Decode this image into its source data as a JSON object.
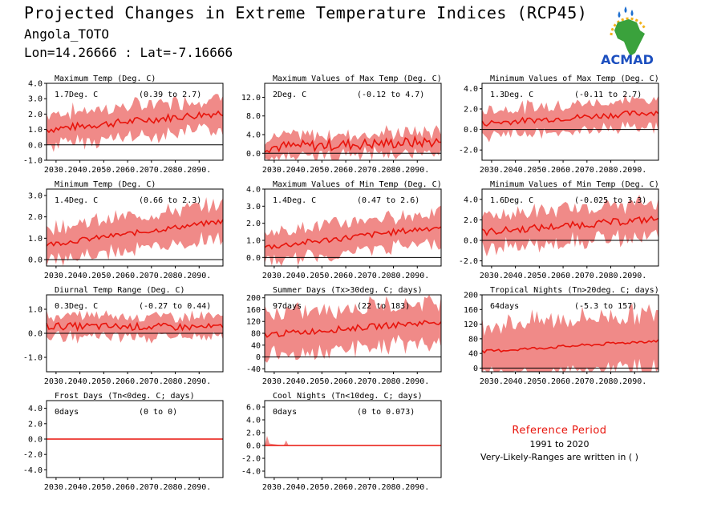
{
  "header": {
    "title": "Projected Changes in Extreme Temperature Indices (RCP45)",
    "location": "Angola_TOTO",
    "coords": "Lon=14.26666 : Lat=-7.16666"
  },
  "logo": {
    "text": "ACMAD",
    "colors": {
      "africa": "#3aa23c",
      "sun": "#f2b21a",
      "drops": "#1e6fd0",
      "text": "#1c4fbf"
    }
  },
  "reference": {
    "title": "Reference Period",
    "years": "1991 to 2020",
    "note": "Very-Likely-Ranges are written in ( )"
  },
  "colors": {
    "band": "#f08a88",
    "line": "#e8140c",
    "zero": "#000000"
  },
  "chart_data": [
    {
      "type": "area",
      "title": "Maximum Temp (Deg. C)",
      "mean_label": "1.7Deg. C",
      "range_label": "(0.39 to 2.7)",
      "x_ticks": [
        "2030.",
        "2040.",
        "2050.",
        "2060.",
        "2070.",
        "2080.",
        "2090."
      ],
      "xlim": [
        2026,
        2100
      ],
      "ylim": [
        -1,
        4
      ],
      "y_ticks": [
        "-1.0",
        "0.0",
        "1.0",
        "2.0",
        "3.0",
        "4.0"
      ],
      "y_tick_values": [
        -1,
        0,
        1,
        2,
        3,
        4
      ],
      "series": [
        {
          "values": {
            "start": [
              2026,
              1.0
            ],
            "end": [
              2100,
              2.1
            ],
            "spread": 1.0,
            "noise": 0.25
          }
        }
      ],
      "zero_line": 0
    },
    {
      "type": "area",
      "title": "Maximum Values of Max Temp (Deg. C)",
      "mean_label": "2Deg. C",
      "range_label": "(-0.12 to 4.7)",
      "x_ticks": [
        "2030.",
        "2040.",
        "2050.",
        "2060.",
        "2070.",
        "2080.",
        "2090."
      ],
      "xlim": [
        2026,
        2100
      ],
      "ylim": [
        -1.5,
        15
      ],
      "y_ticks": [
        "0.0",
        "4.0",
        "8.0",
        "12.0"
      ],
      "y_tick_values": [
        0,
        4,
        8,
        12
      ],
      "series": [
        {
          "values": {
            "start": [
              2026,
              1.3
            ],
            "end": [
              2100,
              2.5
            ],
            "spread": 2.2,
            "noise": 1.2
          }
        }
      ],
      "zero_line": 0
    },
    {
      "type": "area",
      "title": "Minimum Values of Max Temp (Deg. C)",
      "mean_label": "1.3Deg. C",
      "range_label": "(-0.11 to 2.7)",
      "x_ticks": [
        "2030.",
        "2040.",
        "2050.",
        "2060.",
        "2070.",
        "2080.",
        "2090."
      ],
      "xlim": [
        2026,
        2100
      ],
      "ylim": [
        -3,
        4.5
      ],
      "y_ticks": [
        "-2.0",
        "0.0",
        "2.0",
        "4.0"
      ],
      "y_tick_values": [
        -2,
        0,
        2,
        4
      ],
      "series": [
        {
          "values": {
            "start": [
              2026,
              0.6
            ],
            "end": [
              2100,
              1.7
            ],
            "spread": 1.3,
            "noise": 0.3
          }
        }
      ],
      "zero_line": 0
    },
    {
      "type": "area",
      "title": "Minimum Temp (Deg. C)",
      "mean_label": "1.4Deg. C",
      "range_label": "(0.66 to 2.3)",
      "x_ticks": [
        "2030.",
        "2040.",
        "2050.",
        "2060.",
        "2070.",
        "2080.",
        "2090."
      ],
      "xlim": [
        2026,
        2100
      ],
      "ylim": [
        -0.3,
        3.3
      ],
      "y_ticks": [
        "0.0",
        "1.0",
        "2.0",
        "3.0"
      ],
      "y_tick_values": [
        0,
        1,
        2,
        3
      ],
      "series": [
        {
          "values": {
            "start": [
              2026,
              0.7
            ],
            "end": [
              2100,
              1.8
            ],
            "spread": 0.8,
            "noise": 0.12
          }
        }
      ],
      "zero_line": 0
    },
    {
      "type": "area",
      "title": "Maximum Values of Min Temp (Deg. C)",
      "mean_label": "1.4Deg. C",
      "range_label": "(0.47 to 2.6)",
      "x_ticks": [
        "2030.",
        "2040.",
        "2050.",
        "2060.",
        "2070.",
        "2080.",
        "2090."
      ],
      "xlim": [
        2026,
        2100
      ],
      "ylim": [
        -0.5,
        4
      ],
      "y_ticks": [
        "0.0",
        "1.0",
        "2.0",
        "3.0",
        "4.0"
      ],
      "y_tick_values": [
        0,
        1,
        2,
        3,
        4
      ],
      "series": [
        {
          "values": {
            "start": [
              2026,
              0.6
            ],
            "end": [
              2100,
              1.8
            ],
            "spread": 0.9,
            "noise": 0.18
          }
        }
      ],
      "zero_line": 0
    },
    {
      "type": "area",
      "title": "Minimum Values of Min Temp (Deg. C)",
      "mean_label": "1.6Deg. C",
      "range_label": "(-0.025 to 3.3)",
      "x_ticks": [
        "2030.",
        "2040.",
        "2050.",
        "2060.",
        "2070.",
        "2080.",
        "2090."
      ],
      "xlim": [
        2026,
        2100
      ],
      "ylim": [
        -2.5,
        5
      ],
      "y_ticks": [
        "-2.0",
        "0.0",
        "2.0",
        "4.0"
      ],
      "y_tick_values": [
        -2,
        0,
        2,
        4
      ],
      "series": [
        {
          "values": {
            "start": [
              2026,
              0.8
            ],
            "end": [
              2100,
              2.1
            ],
            "spread": 1.6,
            "noise": 0.35
          }
        }
      ],
      "zero_line": 0
    },
    {
      "type": "area",
      "title": "Diurnal Temp Range (Deg. C)",
      "mean_label": "0.3Deg. C",
      "range_label": "(-0.27 to 0.44)",
      "x_ticks": [
        "2030.",
        "2040.",
        "2050.",
        "2060.",
        "2070.",
        "2080.",
        "2090."
      ],
      "xlim": [
        2026,
        2100
      ],
      "ylim": [
        -1.6,
        1.6
      ],
      "y_ticks": [
        "-1.0",
        "0.0",
        "1.0"
      ],
      "y_tick_values": [
        -1,
        0,
        1
      ],
      "series": [
        {
          "values": {
            "start": [
              2026,
              0.3
            ],
            "end": [
              2100,
              0.25
            ],
            "spread": 0.45,
            "noise": 0.15
          }
        }
      ],
      "zero_line": 0
    },
    {
      "type": "area",
      "title": "Summer Days (Tx>30deg. C; days)",
      "mean_label": "97days",
      "range_label": "(22 to 183)",
      "x_ticks": [
        "2030.",
        "2040.",
        "2050.",
        "2060.",
        "2070.",
        "2080.",
        "2090."
      ],
      "xlim": [
        2026,
        2100
      ],
      "ylim": [
        -50,
        210
      ],
      "y_ticks": [
        "-40",
        "0",
        "40",
        "80",
        "120",
        "160",
        "200"
      ],
      "y_tick_values": [
        -40,
        0,
        40,
        80,
        120,
        160,
        200
      ],
      "series": [
        {
          "values": {
            "start": [
              2026,
              75
            ],
            "end": [
              2100,
              120
            ],
            "spread": 70,
            "noise": 10
          }
        }
      ],
      "zero_line": 0
    },
    {
      "type": "area",
      "title": "Tropical Nights (Tn>20deg. C; days)",
      "mean_label": "64days",
      "range_label": "(-5.3 to 157)",
      "x_ticks": [
        "2030.",
        "2040.",
        "2050.",
        "2060.",
        "2070.",
        "2080.",
        "2090."
      ],
      "xlim": [
        2026,
        2100
      ],
      "ylim": [
        -10,
        200
      ],
      "y_ticks": [
        "0",
        "40",
        "80",
        "120",
        "160",
        "200"
      ],
      "y_tick_values": [
        0,
        40,
        80,
        120,
        160,
        200
      ],
      "series": [
        {
          "values": {
            "start": [
              2026,
              45
            ],
            "end": [
              2100,
              75
            ],
            "spread": 75,
            "noise": 4
          }
        }
      ],
      "zero_line": 0
    },
    {
      "type": "area",
      "title": "Frost Days (Tn<0deg. C; days)",
      "mean_label": "0days",
      "range_label": "(0 to 0)",
      "x_ticks": [
        "2030.",
        "2040.",
        "2050.",
        "2060.",
        "2070.",
        "2080.",
        "2090."
      ],
      "xlim": [
        2026,
        2100
      ],
      "ylim": [
        -5,
        5
      ],
      "y_ticks": [
        "-4.0",
        "-2.0",
        "0.0",
        "2.0",
        "4.0"
      ],
      "y_tick_values": [
        -4,
        -2,
        0,
        2,
        4
      ],
      "series": [
        {
          "values": {
            "start": [
              2026,
              0
            ],
            "end": [
              2100,
              0
            ],
            "spread": 0,
            "noise": 0
          }
        }
      ],
      "zero_line": 0
    },
    {
      "type": "area",
      "title": "Cool Nights (Tn<10deg. C; days)",
      "mean_label": "0days",
      "range_label": "(0 to 0.073)",
      "x_ticks": [
        "2030.",
        "2040.",
        "2050.",
        "2060.",
        "2070.",
        "2080.",
        "2090."
      ],
      "xlim": [
        2026,
        2100
      ],
      "ylim": [
        -5,
        7
      ],
      "y_ticks": [
        "-4.0",
        "-2.0",
        "0.0",
        "2.0",
        "4.0",
        "6.0"
      ],
      "y_tick_values": [
        -4,
        -2,
        0,
        2,
        4,
        6
      ],
      "series": [
        {
          "values": {
            "start": [
              2026,
              0
            ],
            "end": [
              2100,
              0
            ],
            "spread": 0.3,
            "noise": 0
          }
        }
      ],
      "zero_line": 0
    }
  ]
}
